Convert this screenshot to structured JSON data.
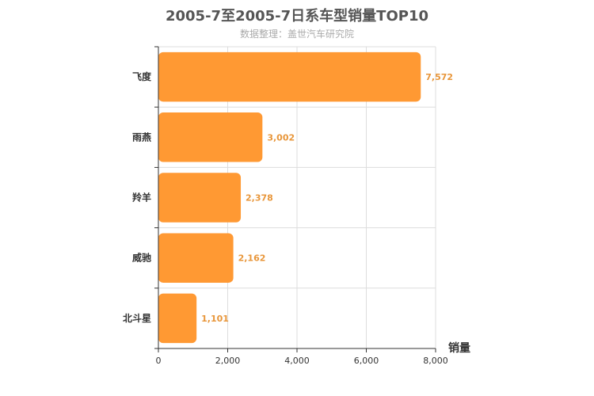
{
  "title": "2005-7至2005-7日系车型销量TOP10",
  "subtitle": "数据整理：盖世汽车研究院",
  "bar_color": "#ff9933",
  "label_color": "#e8963a",
  "chart_data": {
    "type": "bar",
    "orientation": "horizontal",
    "categories": [
      "飞度",
      "雨燕",
      "羚羊",
      "威驰",
      "北斗星"
    ],
    "values": [
      7572,
      3002,
      2378,
      2162,
      1101
    ],
    "value_labels": [
      "7,572",
      "3,002",
      "2,378",
      "2,162",
      "1,101"
    ],
    "x_ticks": [
      "0",
      "2,000",
      "4,000",
      "6,000",
      "8,000"
    ],
    "xlim": [
      0,
      8000
    ],
    "xlabel": "销量",
    "grid": true
  }
}
